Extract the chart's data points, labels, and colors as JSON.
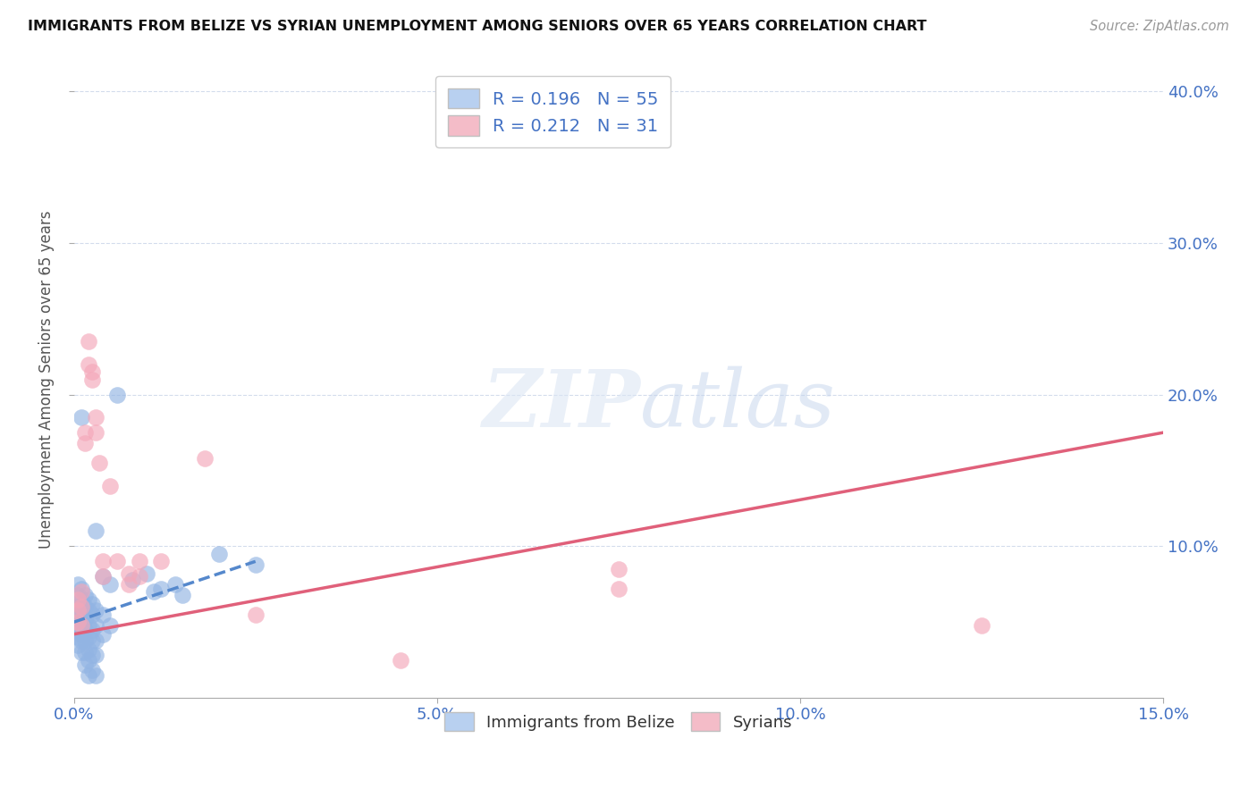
{
  "title": "IMMIGRANTS FROM BELIZE VS SYRIAN UNEMPLOYMENT AMONG SENIORS OVER 65 YEARS CORRELATION CHART",
  "source": "Source: ZipAtlas.com",
  "ylabel": "Unemployment Among Seniors over 65 years",
  "blue_color": "#92b4e3",
  "pink_color": "#f4a7b9",
  "blue_line_color": "#5588cc",
  "pink_line_color": "#e0607a",
  "blue_scatter": [
    [
      0.0005,
      0.075
    ],
    [
      0.0005,
      0.068
    ],
    [
      0.0005,
      0.06
    ],
    [
      0.0005,
      0.055
    ],
    [
      0.0005,
      0.05
    ],
    [
      0.0005,
      0.045
    ],
    [
      0.0005,
      0.04
    ],
    [
      0.0005,
      0.035
    ],
    [
      0.001,
      0.072
    ],
    [
      0.001,
      0.065
    ],
    [
      0.001,
      0.058
    ],
    [
      0.001,
      0.05
    ],
    [
      0.001,
      0.042
    ],
    [
      0.001,
      0.038
    ],
    [
      0.001,
      0.03
    ],
    [
      0.001,
      0.185
    ],
    [
      0.0015,
      0.068
    ],
    [
      0.0015,
      0.06
    ],
    [
      0.0015,
      0.052
    ],
    [
      0.0015,
      0.045
    ],
    [
      0.0015,
      0.038
    ],
    [
      0.0015,
      0.03
    ],
    [
      0.0015,
      0.022
    ],
    [
      0.002,
      0.065
    ],
    [
      0.002,
      0.058
    ],
    [
      0.002,
      0.048
    ],
    [
      0.002,
      0.04
    ],
    [
      0.002,
      0.032
    ],
    [
      0.002,
      0.025
    ],
    [
      0.002,
      0.015
    ],
    [
      0.0025,
      0.062
    ],
    [
      0.0025,
      0.055
    ],
    [
      0.0025,
      0.045
    ],
    [
      0.0025,
      0.038
    ],
    [
      0.0025,
      0.028
    ],
    [
      0.0025,
      0.018
    ],
    [
      0.003,
      0.11
    ],
    [
      0.003,
      0.058
    ],
    [
      0.003,
      0.048
    ],
    [
      0.003,
      0.038
    ],
    [
      0.003,
      0.028
    ],
    [
      0.003,
      0.015
    ],
    [
      0.004,
      0.08
    ],
    [
      0.004,
      0.055
    ],
    [
      0.004,
      0.042
    ],
    [
      0.005,
      0.075
    ],
    [
      0.005,
      0.048
    ],
    [
      0.006,
      0.2
    ],
    [
      0.008,
      0.078
    ],
    [
      0.01,
      0.082
    ],
    [
      0.011,
      0.07
    ],
    [
      0.012,
      0.072
    ],
    [
      0.014,
      0.075
    ],
    [
      0.015,
      0.068
    ],
    [
      0.02,
      0.095
    ],
    [
      0.025,
      0.088
    ]
  ],
  "pink_scatter": [
    [
      0.0005,
      0.065
    ],
    [
      0.0005,
      0.058
    ],
    [
      0.0005,
      0.05
    ],
    [
      0.001,
      0.07
    ],
    [
      0.001,
      0.06
    ],
    [
      0.001,
      0.048
    ],
    [
      0.0015,
      0.175
    ],
    [
      0.0015,
      0.168
    ],
    [
      0.002,
      0.235
    ],
    [
      0.002,
      0.22
    ],
    [
      0.0025,
      0.215
    ],
    [
      0.0025,
      0.21
    ],
    [
      0.003,
      0.185
    ],
    [
      0.003,
      0.175
    ],
    [
      0.0035,
      0.155
    ],
    [
      0.004,
      0.09
    ],
    [
      0.004,
      0.08
    ],
    [
      0.005,
      0.14
    ],
    [
      0.006,
      0.09
    ],
    [
      0.0075,
      0.082
    ],
    [
      0.0075,
      0.075
    ],
    [
      0.009,
      0.09
    ],
    [
      0.009,
      0.08
    ],
    [
      0.012,
      0.09
    ],
    [
      0.018,
      0.158
    ],
    [
      0.025,
      0.055
    ],
    [
      0.045,
      0.025
    ],
    [
      0.075,
      0.085
    ],
    [
      0.075,
      0.072
    ],
    [
      0.125,
      0.048
    ]
  ],
  "xlim": [
    0.0,
    0.15
  ],
  "ylim": [
    0.0,
    0.42
  ],
  "blue_line_x": [
    0.0,
    0.025
  ],
  "blue_line_slope": 1.2,
  "blue_line_intercept": 0.05,
  "pink_line_x": [
    0.0,
    0.15
  ],
  "pink_line_slope": 0.88,
  "pink_line_intercept": 0.042
}
